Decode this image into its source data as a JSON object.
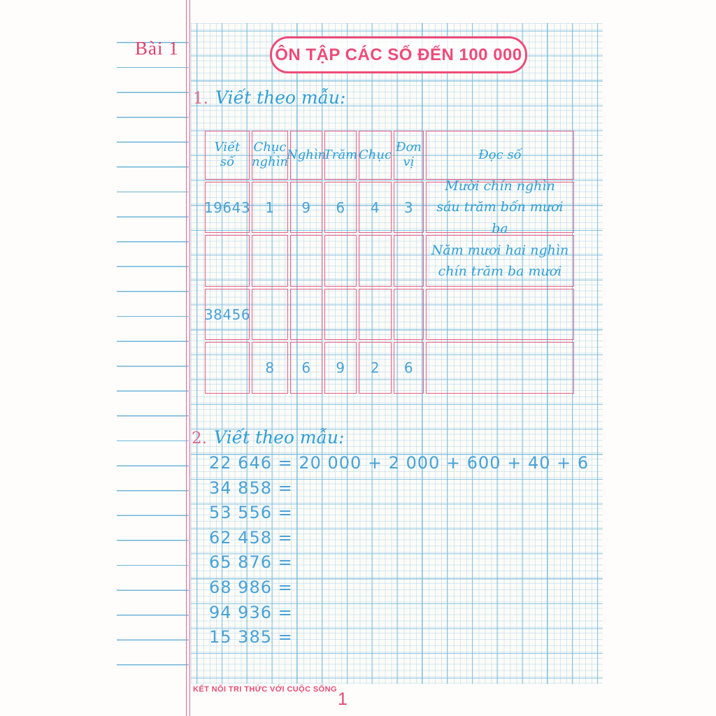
{
  "page": {
    "lesson_label": "Bài 1",
    "title": "ÔN TẬP CÁC SỐ ĐẾN 100 000",
    "footer_slogan": "KẾT NỐI TRI THỨC VỚI CUỘC SỐNG",
    "page_number": "1"
  },
  "colors": {
    "accent_pink": "#ee4b78",
    "ink_blue": "#3ba2d8",
    "grid_blue": "#85c4e3",
    "paper": "#fdfcf8"
  },
  "exercise1": {
    "number": "1.",
    "instruction": "Viết theo mẫu:",
    "table": {
      "headers": [
        "Viết số",
        "Chục nghìn",
        "Nghìn",
        "Trăm",
        "Chục",
        "Đơn vị",
        "Đọc số"
      ],
      "rows": [
        {
          "cells": [
            "19643",
            "1",
            "9",
            "6",
            "4",
            "3"
          ],
          "read": [
            "Mười chín nghìn",
            "sáu trăm bốn mươi ba"
          ]
        },
        {
          "cells": [
            "",
            "",
            "",
            "",
            "",
            ""
          ],
          "read": [
            "Năm mươi hai nghìn",
            "chín trăm ba mươi"
          ]
        },
        {
          "cells": [
            "38456",
            "",
            "",
            "",
            "",
            ""
          ],
          "read": [
            "",
            ""
          ]
        },
        {
          "cells": [
            "",
            "8",
            "6",
            "9",
            "2",
            "6"
          ],
          "read": [
            "",
            ""
          ]
        }
      ]
    }
  },
  "exercise2": {
    "number": "2.",
    "instruction": "Viết theo mẫu:",
    "lines": [
      "22 646 = 20 000 + 2 000 + 600 + 40 + 6",
      "34 858 =",
      "53 556 =",
      "62 458 =",
      "65 876 =",
      "68 986 =",
      "94 936 =",
      "15 385 ="
    ]
  }
}
